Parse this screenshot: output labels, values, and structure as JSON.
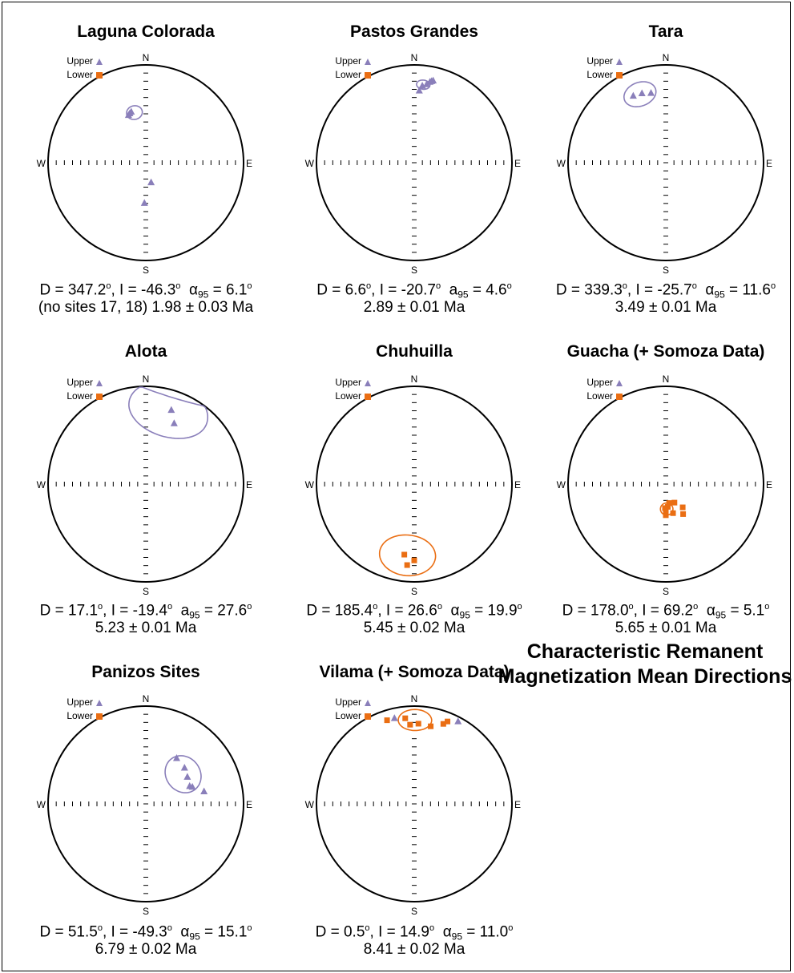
{
  "legend": {
    "upper": "Upper",
    "lower": "Lower"
  },
  "labels": {
    "n": "N",
    "s": "S",
    "e": "E",
    "w": "W"
  },
  "colors": {
    "upper": "#8a7fba",
    "lower": "#ea6e13",
    "frame": "#000000"
  },
  "summary_title": "Characteristic Remanent Magnetization Mean Directions",
  "nets": [
    {
      "title": "Laguna Colorada",
      "stat": {
        "d": "D = 347.2",
        "i": ", I = -46.3",
        "alpha_symbol": "α",
        "alpha_value": " = 6.1"
      },
      "age": "(no sites 17, 18) 1.98 ± 0.03 Ma"
    },
    {
      "title": "Pastos Grandes",
      "stat": {
        "d": "D = 6.6",
        "i": ", I = -20.7",
        "alpha_symbol": "a",
        "alpha_value": " = 4.6"
      },
      "age": "2.89 ± 0.01 Ma"
    },
    {
      "title": "Tara",
      "stat": {
        "d": "D = 339.3",
        "i": ", I = -25.7",
        "alpha_symbol": "α",
        "alpha_value": " = 11.6"
      },
      "age": "3.49 ± 0.01 Ma"
    },
    {
      "title": "Alota",
      "stat": {
        "d": "D = 17.1",
        "i": ", I = -19.4",
        "alpha_symbol": "a",
        "alpha_value": " = 27.6"
      },
      "age": "5.23 ± 0.01 Ma"
    },
    {
      "title": "Chuhuilla",
      "stat": {
        "d": "D = 185.4",
        "i": ", I = 26.6",
        "alpha_symbol": "α",
        "alpha_value": " = 19.9"
      },
      "age": "5.45 ± 0.02 Ma"
    },
    {
      "title": "Guacha (+ Somoza Data)",
      "stat": {
        "d": "D = 178.0",
        "i": ", I = 69.2",
        "alpha_symbol": "α",
        "alpha_value": " = 5.1"
      },
      "age": "5.65 ± 0.01 Ma"
    },
    {
      "title": "Panizos Sites",
      "stat": {
        "d": "D = 51.5",
        "i": ", I = -49.3",
        "alpha_symbol": "α",
        "alpha_value": " = 15.1"
      },
      "age": "6.79 ± 0.02 Ma"
    },
    {
      "title": "Vilama (+ Somoza Data)",
      "stat": {
        "d": "D = 0.5",
        "i": ", I = 14.9",
        "alpha_symbol": "α",
        "alpha_value": " = 11.0"
      },
      "age": "8.41 ± 0.02 Ma"
    }
  ],
  "chart_data": [
    {
      "type": "scatter",
      "title": "Laguna Colorada",
      "upper": [
        [
          340,
          -47
        ],
        [
          342,
          -46
        ],
        [
          344,
          -45
        ],
        [
          165,
          -73
        ],
        [
          182,
          -56
        ]
      ],
      "lower": [],
      "mean": {
        "dec": 347.2,
        "inc": -46.3,
        "a95": 6.1
      }
    },
    {
      "type": "scatter",
      "title": "Pastos Grandes",
      "upper": [
        [
          6,
          -22
        ],
        [
          9,
          -20
        ],
        [
          11,
          -17
        ],
        [
          12,
          -16
        ],
        [
          13,
          -15
        ],
        [
          4,
          -27
        ]
      ],
      "lower": [],
      "mean": {
        "dec": 6.6,
        "inc": -20.7,
        "a95": 4.6
      }
    },
    {
      "type": "scatter",
      "title": "Tara",
      "upper": [
        [
          334,
          -25
        ],
        [
          341,
          -26
        ],
        [
          348,
          -28
        ]
      ],
      "lower": [],
      "mean": {
        "dec": 339.3,
        "inc": -25.7,
        "a95": 11.6
      }
    },
    {
      "type": "scatter",
      "title": "Alota",
      "upper": [
        [
          19,
          -21
        ],
        [
          25,
          -32
        ]
      ],
      "lower": [],
      "mean": {
        "dec": 17.1,
        "inc": -19.4,
        "a95": 27.6
      }
    },
    {
      "type": "scatter",
      "title": "Chuhuilla",
      "upper": [],
      "lower": [
        [
          180,
          23
        ],
        [
          188,
          28
        ],
        [
          185,
          18
        ]
      ],
      "mean": {
        "dec": 185.4,
        "inc": 26.6,
        "a95": 19.9
      }
    },
    {
      "type": "scatter",
      "title": "Guacha (+ Somoza Data)",
      "upper": [],
      "lower": [
        [
          180,
          64
        ],
        [
          175,
          71
        ],
        [
          166,
          65
        ],
        [
          150,
          61
        ],
        [
          144,
          66
        ],
        [
          180,
          68
        ],
        [
          155,
          73
        ],
        [
          170,
          74
        ],
        [
          182,
          70
        ]
      ],
      "mean": {
        "dec": 178.0,
        "inc": 69.2,
        "a95": 5.1
      }
    },
    {
      "type": "scatter",
      "title": "Panizos Sites",
      "upper": [
        [
          34,
          -43
        ],
        [
          47,
          -45
        ],
        [
          57,
          -48
        ],
        [
          68,
          -50
        ],
        [
          78,
          -39
        ],
        [
          70,
          -48
        ]
      ],
      "lower": [],
      "mean": {
        "dec": 51.5,
        "inc": -49.3,
        "a95": 15.1
      }
    },
    {
      "type": "scatter",
      "title": "Vilama (+ Somoza Data)",
      "upper": [
        [
          347,
          -11
        ],
        [
          28,
          -5
        ]
      ],
      "lower": [
        [
          342,
          11
        ],
        [
          354,
          13
        ],
        [
          357,
          20
        ],
        [
          3,
          19
        ],
        [
          12,
          20
        ],
        [
          20,
          14
        ],
        [
          22,
          10
        ]
      ],
      "mean": {
        "dec": 0.5,
        "inc": 14.9,
        "a95": 11.0
      }
    }
  ]
}
